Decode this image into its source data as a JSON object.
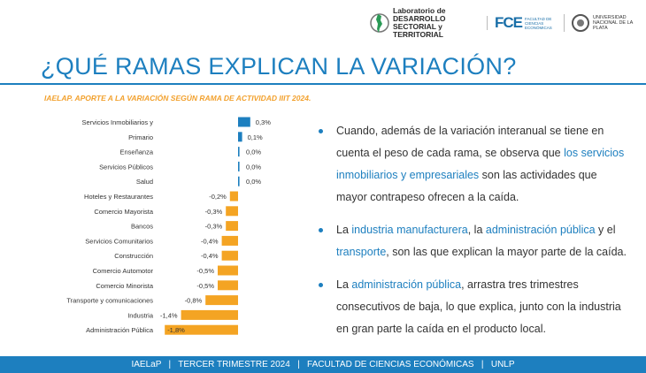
{
  "header": {
    "lab_line1": "Laboratorio de DESARROLLO",
    "lab_line2": "SECTORIAL y TERRITORIAL",
    "fce_mark": "FCE",
    "fce_sub": "FACULTAD DE CIENCIAS ECONÓMICAS",
    "unlp_text": "UNIVERSIDAD NACIONAL DE LA PLATA"
  },
  "page_title": "¿QUÉ RAMAS EXPLICAN LA VARIACIÓN?",
  "chart_data": {
    "type": "bar",
    "orientation": "horizontal",
    "title": "IAELAP. APORTE A LA VARIACIÓN SEGÚN RAMA DE ACTIVIDAD IIIT 2024.",
    "categories": [
      "Servicios Inmobiliarios y",
      "Primario",
      "Enseñanza",
      "Servicios Públicos",
      "Salud",
      "Hoteles y Restaurantes",
      "Comercio Mayorista",
      "Bancos",
      "Servicios Comunitarios",
      "Construcción",
      "Comercio Automotor",
      "Comercio Minorista",
      "Transporte y comunicaciones",
      "Industria",
      "Administración Pública"
    ],
    "values": [
      0.3,
      0.1,
      0.0,
      0.0,
      0.0,
      -0.2,
      -0.3,
      -0.3,
      -0.4,
      -0.4,
      -0.5,
      -0.5,
      -0.8,
      -1.4,
      -1.8
    ],
    "labels": [
      "0,3%",
      "0,1%",
      "0,0%",
      "0,0%",
      "0,0%",
      "-0,2%",
      "-0,3%",
      "-0,3%",
      "-0,4%",
      "-0,4%",
      "-0,5%",
      "-0,5%",
      "-0,8%",
      "-1,4%",
      "-1,8%"
    ],
    "colors": {
      "positive": "#1d7fbf",
      "negative": "#f4a423"
    }
  },
  "bullets": [
    [
      {
        "t": "Cuando, además de la variación interanual se tiene en cuenta el peso de cada rama, se observa que "
      },
      {
        "t": "los servicios inmobiliarios y empresariales",
        "hl": true
      },
      {
        "t": " son las actividades que mayor contrapeso ofrecen a la caída."
      }
    ],
    [
      {
        "t": "La "
      },
      {
        "t": "industria manufacturera",
        "hl": true
      },
      {
        "t": ", la "
      },
      {
        "t": "administración pública",
        "hl": true
      },
      {
        "t": " y el "
      },
      {
        "t": "transporte",
        "hl": true
      },
      {
        "t": ", son las que explican la mayor parte de la caída."
      }
    ],
    [
      {
        "t": "La "
      },
      {
        "t": "administración pública",
        "hl": true
      },
      {
        "t": ", arrastra tres trimestres consecutivos de baja, lo que explica, junto con la industria en gran parte la caída en el producto local."
      }
    ]
  ],
  "footer": {
    "text": "IAELaP   |   TERCER TRIMESTRE 2024   |   FACULTAD DE CIENCIAS ECONÓMICAS   |   UNLP"
  },
  "colors": {
    "accent_blue": "#1d7fbf",
    "accent_orange": "#f4a423",
    "title_orange": "#f2a12e"
  }
}
